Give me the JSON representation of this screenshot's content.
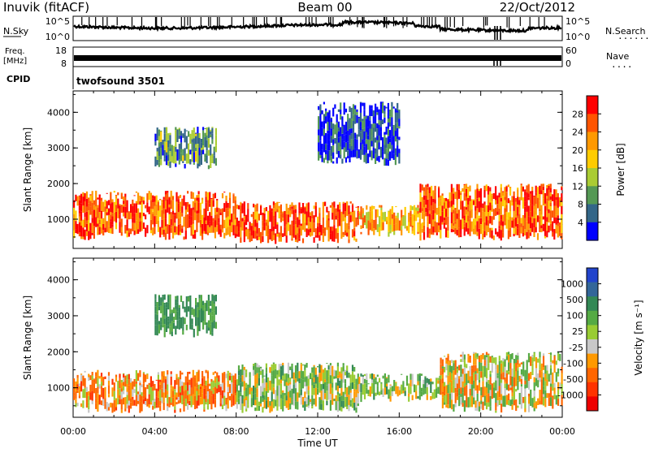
{
  "header": {
    "station": "Inuvik (fitACF)",
    "beam": "Beam 00",
    "date": "22/Oct/2012"
  },
  "noise_panel": {
    "left_label": "N.Sky",
    "left_ticks": [
      "10^5",
      "10^0"
    ],
    "right_label": "N.Search",
    "right_ticks": [
      "10^5",
      "10^0"
    ]
  },
  "freq_panel": {
    "left_label_1": "Freq.",
    "left_label_2": "[MHz]",
    "left_ticks": [
      "18",
      "8"
    ],
    "right_label": "Nave",
    "right_ticks": [
      "60",
      "0"
    ]
  },
  "cpid_panel": {
    "label": "CPID",
    "program": "twofsound 3501"
  },
  "chart_data": [
    {
      "type": "heatmap",
      "title": "",
      "quantity": "Power",
      "colorbar_label": "Power [dB]",
      "colorbar_ticks": [
        "28",
        "24",
        "20",
        "16",
        "12",
        "8",
        "4"
      ],
      "colorbar_colors": [
        "#ff0000",
        "#ff5500",
        "#ff9900",
        "#ffcc00",
        "#aacc33",
        "#559955",
        "#336688",
        "#0000ff"
      ],
      "ylabel": "Slant Range [km]",
      "yticks": [
        "4000",
        "3000",
        "2000",
        "1000"
      ],
      "ylim": [
        180,
        4600
      ],
      "xlim_hours": [
        0,
        24
      ],
      "approx_echo_bands": [
        {
          "t_start_h": 0,
          "t_end_h": 8,
          "range_km": [
            400,
            1800
          ],
          "power_db": 28
        },
        {
          "t_start_h": 8,
          "t_end_h": 14,
          "range_km": [
            300,
            1500
          ],
          "power_db": 28
        },
        {
          "t_start_h": 14,
          "t_end_h": 17,
          "range_km": [
            500,
            1400
          ],
          "power_db": 22
        },
        {
          "t_start_h": 17,
          "t_end_h": 24,
          "range_km": [
            400,
            2000
          ],
          "power_db": 28
        },
        {
          "t_start_h": 4,
          "t_end_h": 7,
          "range_km": [
            2400,
            3600
          ],
          "power_db": 12
        },
        {
          "t_start_h": 12,
          "t_end_h": 16,
          "range_km": [
            2500,
            4300
          ],
          "power_db": 6
        }
      ]
    },
    {
      "type": "heatmap",
      "title": "",
      "quantity": "Velocity",
      "colorbar_label": "Velocity [m s⁻¹]",
      "colorbar_ticks": [
        "1000",
        "500",
        "100",
        "25",
        "-25",
        "-100",
        "-500",
        "-1000"
      ],
      "colorbar_colors": [
        "#2244cc",
        "#336699",
        "#338855",
        "#55aa44",
        "#99cc33",
        "#c8c8c8",
        "#ff9900",
        "#ff6600",
        "#ff3300",
        "#ee0000"
      ],
      "ylabel": "Slant Range [km]",
      "yticks": [
        "4000",
        "3000",
        "2000",
        "1000"
      ],
      "ylim": [
        180,
        4600
      ],
      "xlabel": "Time UT",
      "xticks": [
        "00:00",
        "04:00",
        "08:00",
        "12:00",
        "16:00",
        "20:00",
        "00:00"
      ],
      "xlim_hours": [
        0,
        24
      ],
      "approx_echo_bands": [
        {
          "t_start_h": 0,
          "t_end_h": 8,
          "range_km": [
            300,
            1500
          ],
          "velocity_ms": -100
        },
        {
          "t_start_h": 8,
          "t_end_h": 14,
          "range_km": [
            300,
            1700
          ],
          "velocity_ms": 100
        },
        {
          "t_start_h": 14,
          "t_end_h": 18,
          "range_km": [
            600,
            1400
          ],
          "velocity_ms": 100
        },
        {
          "t_start_h": 18,
          "t_end_h": 24,
          "range_km": [
            300,
            2000
          ],
          "velocity_ms": 0
        },
        {
          "t_start_h": 4,
          "t_end_h": 7,
          "range_km": [
            2400,
            3600
          ],
          "velocity_ms": 300
        }
      ]
    }
  ]
}
